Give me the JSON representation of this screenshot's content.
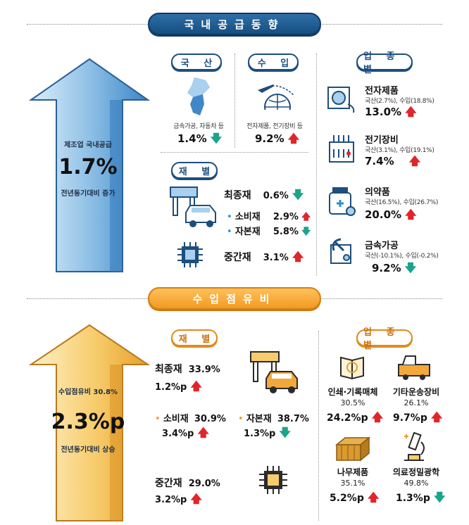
{
  "top": {
    "banner": "국내공급동향",
    "arrow": {
      "label1": "제조업 국내공급",
      "big": "1.7%",
      "label2": "전년동기대비 증가",
      "direction": "up"
    },
    "domestic": {
      "pill": "국 산",
      "caption": "금속가공, 자동차 등",
      "value": "1.4%",
      "trend": "down"
    },
    "import": {
      "pill": "수 입",
      "caption": "전자제품, 전기장비 등",
      "value": "9.2%",
      "trend": "up"
    },
    "by_material": {
      "pill": "재 별",
      "final": {
        "label": "최종재",
        "value": "0.6%",
        "trend": "down"
      },
      "consumer": {
        "label": "소비재",
        "value": "2.9%",
        "trend": "up"
      },
      "capital": {
        "label": "자본재",
        "value": "5.8%",
        "trend": "down"
      },
      "intermediate": {
        "label": "중간재",
        "value": "3.1%",
        "trend": "up"
      }
    },
    "by_industry": {
      "pill": "업 종 별",
      "items": [
        {
          "name": "전자제품",
          "detail": "국산(2.7%), 수입(18.8%)",
          "value": "13.0%",
          "trend": "up",
          "icon": "electronics-icon"
        },
        {
          "name": "전기장비",
          "detail": "국산(3.1%), 수입(19.1%)",
          "value": "7.4%",
          "trend": "up",
          "icon": "electrical-equipment-icon"
        },
        {
          "name": "의약품",
          "detail": "국산(16.5%), 수입(26.7%)",
          "value": "20.0%",
          "trend": "up",
          "icon": "medicine-icon"
        },
        {
          "name": "금속가공",
          "detail": "국산(-10.1%), 수입(-0.2%)",
          "value": "9.2%",
          "trend": "down",
          "icon": "metal-processing-icon"
        }
      ]
    }
  },
  "bottom": {
    "banner": "수입점유비",
    "arrow": {
      "label1": "수입점유비 30.8%",
      "big": "2.3%p",
      "label2": "전년동기대비 상승",
      "direction": "up"
    },
    "by_material": {
      "pill": "재 별",
      "final": {
        "label": "최종재",
        "share": "33.9%",
        "change": "1.2%p",
        "trend": "up"
      },
      "consumer": {
        "label": "소비재",
        "share": "30.9%",
        "change": "3.4%p",
        "trend": "up"
      },
      "capital": {
        "label": "자본재",
        "share": "38.7%",
        "change": "1.3%p",
        "trend": "down"
      },
      "intermediate": {
        "label": "중간재",
        "share": "29.0%",
        "change": "3.2%p",
        "trend": "up"
      }
    },
    "by_industry": {
      "pill": "업 종 별",
      "items": [
        {
          "name": "인쇄·기록매체",
          "share": "30.5%",
          "change": "24.2%p",
          "trend": "up",
          "icon": "print-media-icon"
        },
        {
          "name": "기타운송장비",
          "share": "26.1%",
          "change": "9.7%p",
          "trend": "up",
          "icon": "transport-equipment-icon"
        },
        {
          "name": "나무제품",
          "share": "35.1%",
          "change": "5.2%p",
          "trend": "up",
          "icon": "wood-products-icon"
        },
        {
          "name": "의료정밀광학",
          "share": "49.8%",
          "change": "1.3%p",
          "trend": "down",
          "icon": "medical-optical-icon"
        }
      ]
    }
  },
  "colors": {
    "navy": "#164e80",
    "orange": "#f29a24",
    "up": "#e0252b",
    "down": "#1aa58a"
  }
}
